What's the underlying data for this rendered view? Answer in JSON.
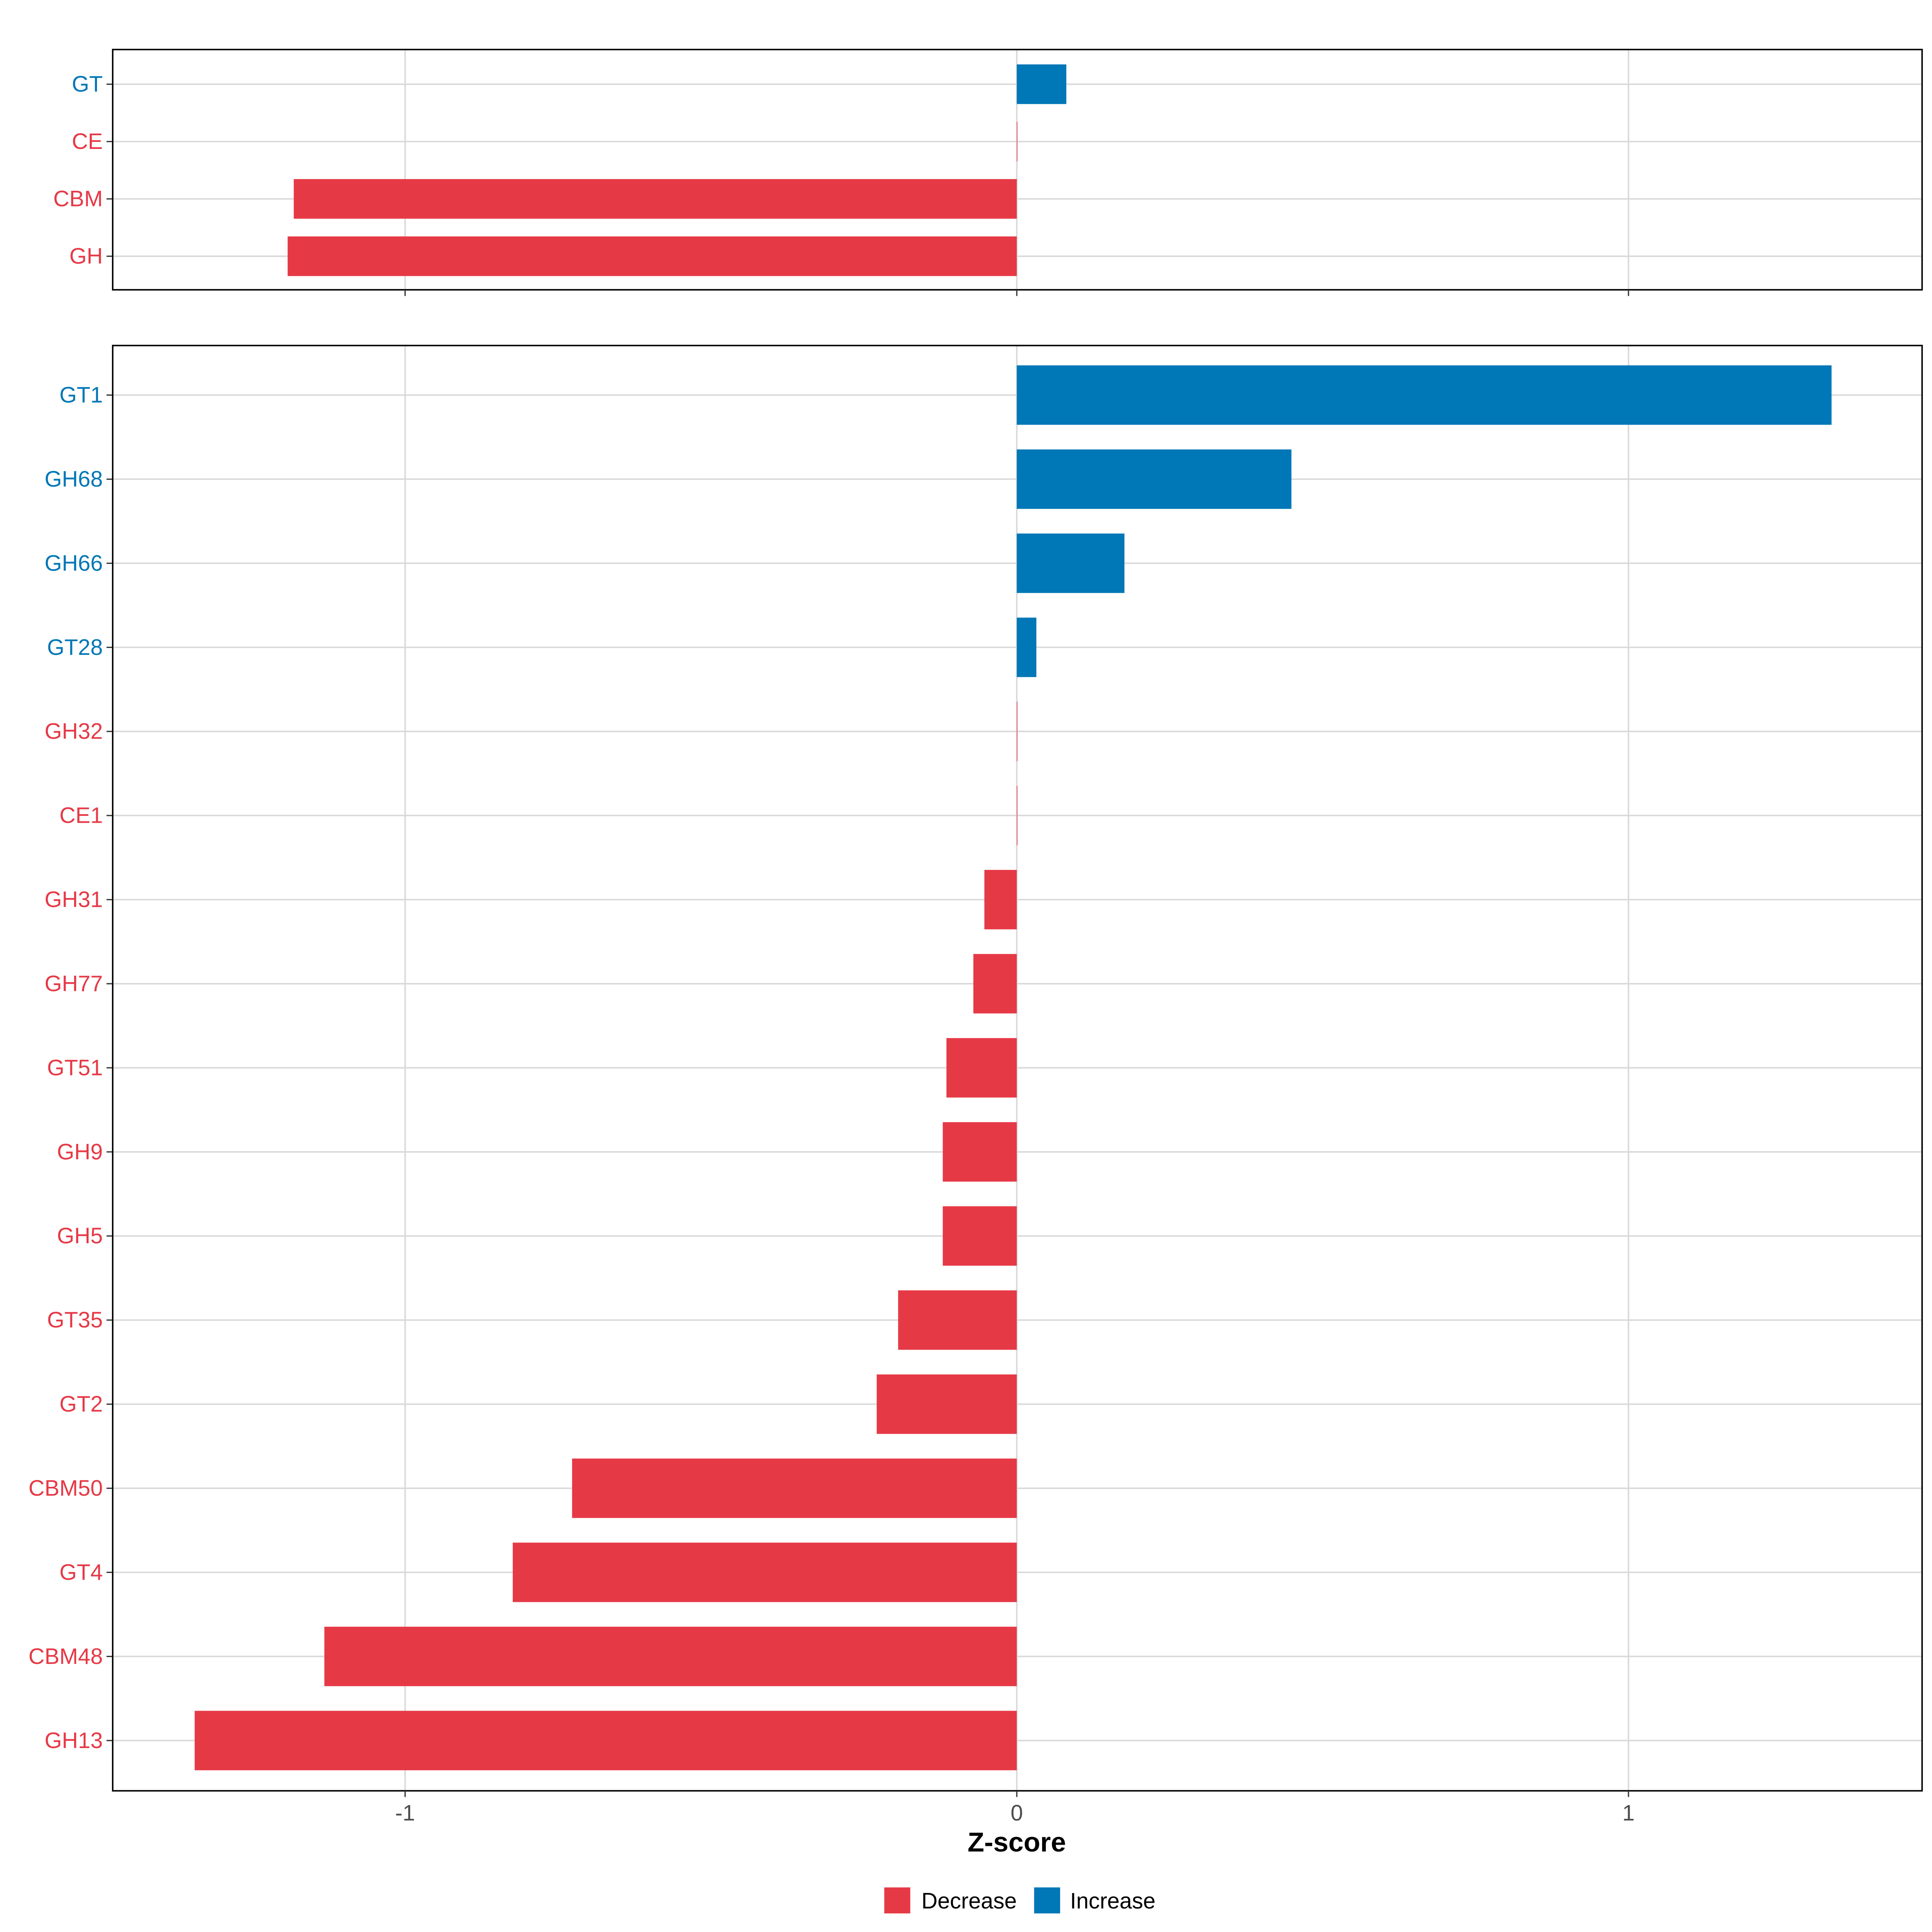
{
  "chart_data": [
    {
      "type": "bar",
      "orientation": "horizontal",
      "panel": "top",
      "categories": [
        "GT",
        "CE",
        "CBM",
        "GH"
      ],
      "values": [
        0.081,
        0.0,
        -1.182,
        -1.192
      ],
      "xlim": [
        -1.478,
        1.48
      ],
      "xticks": [
        -1,
        0,
        1
      ],
      "grid": true
    },
    {
      "type": "bar",
      "orientation": "horizontal",
      "panel": "bottom",
      "categories": [
        "GT1",
        "GH68",
        "GH66",
        "GT28",
        "GH32",
        "CE1",
        "GH31",
        "GH77",
        "GT51",
        "GH9",
        "GH5",
        "GT35",
        "GT2",
        "CBM50",
        "GT4",
        "CBM48",
        "GH13"
      ],
      "values": [
        1.332,
        0.449,
        0.176,
        0.032,
        0.0,
        0.0,
        -0.053,
        -0.071,
        -0.115,
        -0.121,
        -0.121,
        -0.194,
        -0.229,
        -0.727,
        -0.824,
        -1.132,
        -1.344
      ],
      "xlim": [
        -1.478,
        1.48
      ],
      "xticks": [
        -1,
        0,
        1
      ],
      "xtick_labels": [
        "-1",
        "0",
        "1"
      ],
      "xlabel": "Z-score",
      "grid": true
    }
  ],
  "legend": {
    "placement": "bottom",
    "entries": [
      {
        "label": "Decrease",
        "color": "#E63946"
      },
      {
        "label": "Increase",
        "color": "#0077B6"
      }
    ]
  },
  "colors": {
    "decrease": "#E63946",
    "increase": "#0077B6",
    "grid": "#d9d9d9"
  }
}
